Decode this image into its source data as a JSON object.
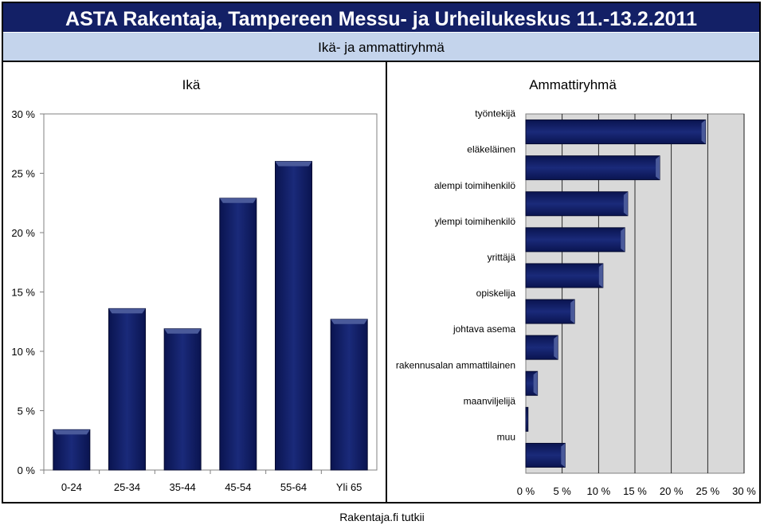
{
  "header": {
    "title": "ASTA Rakentaja, Tampereen Messu- ja Urheilukeskus 11.-13.2.2011",
    "subtitle": "Ikä- ja ammattiryhmä"
  },
  "footer": {
    "source": "Rakentaja.fi tutkii"
  },
  "colors": {
    "bar": "#132066",
    "header_bg": "#132066",
    "subheader_bg": "#c4d4ec",
    "plot_bg": "#d9d9d9"
  },
  "chart_data": [
    {
      "type": "bar",
      "title": "Ikä",
      "categories": [
        "0-24",
        "25-34",
        "35-44",
        "45-54",
        "55-64",
        "Yli 65"
      ],
      "values": [
        3.4,
        13.6,
        11.9,
        22.9,
        26.0,
        12.7
      ],
      "ylim": [
        0,
        30
      ],
      "yticks": [
        "0 %",
        "5 %",
        "10 %",
        "15 %",
        "20 %",
        "25 %",
        "30 %"
      ],
      "grid": false
    },
    {
      "type": "bar",
      "orientation": "horizontal",
      "title": "Ammattiryhmä",
      "categories": [
        "työntekijä",
        "eläkeläinen",
        "alempi toimihenkilö",
        "ylempi toimihenkilö",
        "yrittäjä",
        "opiskelija",
        "johtava asema",
        "rakennusalan ammattilainen",
        "maanviljelijä",
        "muu"
      ],
      "values": [
        24.7,
        18.4,
        14.0,
        13.6,
        10.6,
        6.7,
        4.4,
        1.6,
        0.3,
        5.4
      ],
      "xlim": [
        0,
        30
      ],
      "xticks": [
        "0 %",
        "5 %",
        "10 %",
        "15 %",
        "20 %",
        "25 %",
        "30 %"
      ],
      "grid": true
    }
  ]
}
